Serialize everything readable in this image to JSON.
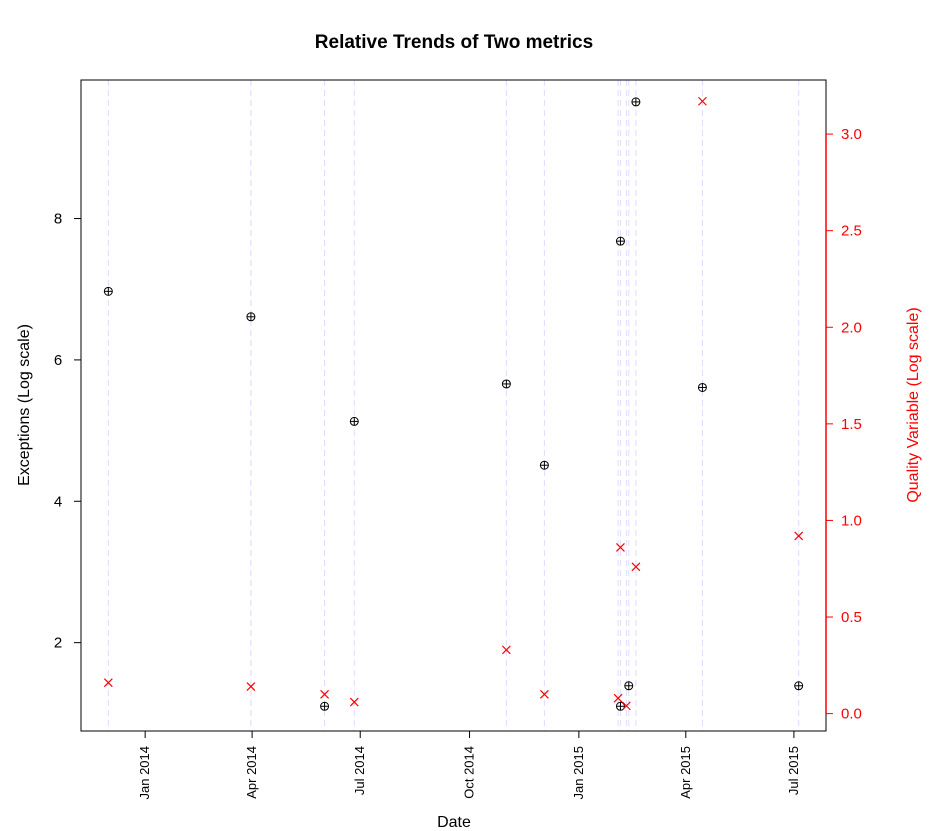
{
  "chart_data": {
    "type": "scatter",
    "title": "Relative Trends of Two metrics",
    "xlabel": "Date",
    "x_ticks": [
      "Jan 2014",
      "Apr 2014",
      "Jul 2014",
      "Oct 2014",
      "Jan 2015",
      "Apr 2015",
      "Jul 2015"
    ],
    "x_tick_dates": [
      "2014-01-01",
      "2014-04-01",
      "2014-07-01",
      "2014-10-01",
      "2015-01-01",
      "2015-04-01",
      "2015-07-01"
    ],
    "x_range": [
      "2013-11-08",
      "2015-07-28"
    ],
    "grid": "vertical dashed lines at each observation date",
    "left_axis": {
      "label": "Exceptions (Log scale)",
      "ticks": [
        2,
        4,
        6,
        8
      ],
      "range": [
        0.75,
        9.96
      ],
      "color": "#000000"
    },
    "right_axis": {
      "label": "Quality Variable (Log scale)",
      "ticks": [
        "0.0",
        "0.5",
        "1.0",
        "1.5",
        "2.0",
        "2.5",
        "3.0"
      ],
      "tick_values": [
        0,
        0.5,
        1.0,
        1.5,
        2.0,
        2.5,
        3.0
      ],
      "range": [
        -0.09,
        3.28
      ],
      "color": "#ff0000"
    },
    "series": [
      {
        "axis": "left",
        "marker": "circle-plus",
        "color": "#000000",
        "points": [
          {
            "x": "2013-12-01",
            "y": 6.97
          },
          {
            "x": "2014-03-31",
            "y": 6.61
          },
          {
            "x": "2014-06-01",
            "y": 1.1
          },
          {
            "x": "2014-06-26",
            "y": 5.13
          },
          {
            "x": "2014-11-01",
            "y": 5.66
          },
          {
            "x": "2014-12-03",
            "y": 4.51
          },
          {
            "x": "2015-02-05",
            "y": 7.68
          },
          {
            "x": "2015-02-05",
            "y": 1.1
          },
          {
            "x": "2015-02-12",
            "y": 1.39
          },
          {
            "x": "2015-02-18",
            "y": 9.65
          },
          {
            "x": "2015-04-15",
            "y": 5.61
          },
          {
            "x": "2015-07-05",
            "y": 1.39
          }
        ]
      },
      {
        "axis": "right",
        "marker": "x",
        "color": "#ff0000",
        "points": [
          {
            "x": "2013-12-01",
            "y": 0.16
          },
          {
            "x": "2014-03-31",
            "y": 0.14
          },
          {
            "x": "2014-06-01",
            "y": 0.1
          },
          {
            "x": "2014-06-26",
            "y": 0.06
          },
          {
            "x": "2014-11-01",
            "y": 0.33
          },
          {
            "x": "2014-12-03",
            "y": 0.1
          },
          {
            "x": "2015-02-03",
            "y": 0.08
          },
          {
            "x": "2015-02-05",
            "y": 0.86
          },
          {
            "x": "2015-02-10",
            "y": 0.04
          },
          {
            "x": "2015-02-18",
            "y": 0.76
          },
          {
            "x": "2015-04-15",
            "y": 3.17
          },
          {
            "x": "2015-07-05",
            "y": 0.92
          }
        ]
      }
    ]
  }
}
